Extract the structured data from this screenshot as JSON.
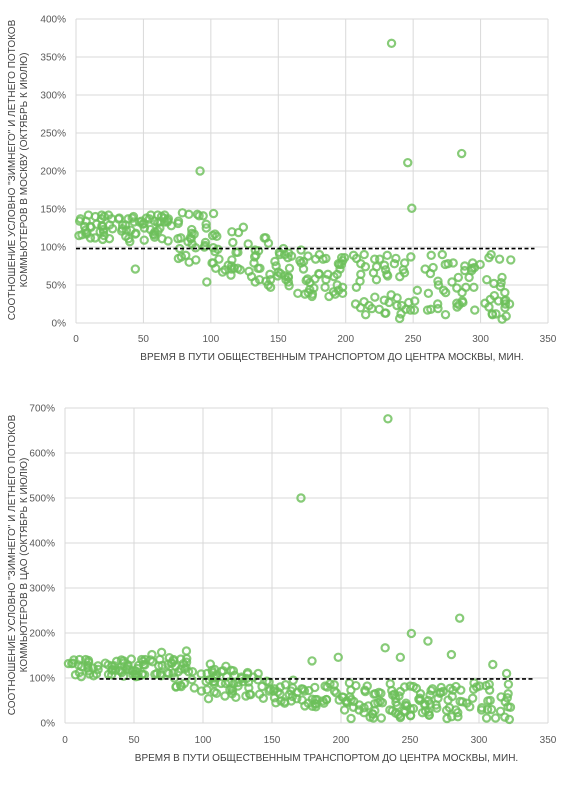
{
  "colors": {
    "marker": "#6cc05a",
    "grid": "#d9d9d9",
    "avg_line": "#000000",
    "text": "#595959"
  },
  "chart_data": [
    {
      "type": "scatter",
      "xlabel": "ВРЕМЯ В ПУТИ  ОБЩЕСТВЕННЫМ ТРАНСПОРТОМ ДО ЦЕНТРА МОСКВЫ, МИН.",
      "ylabel_lines": [
        "СООТНОШЕНИЕ УСЛОВНО \"ЗИМНЕГО\" И ЛЕТНЕГО ПОТОКОВ",
        "КОММЬЮТЕРОВ В МОСКВУ (ОКТЯБРЬ К ИЮЛЮ)"
      ],
      "xlim": [
        0,
        350
      ],
      "ylim": [
        0,
        400
      ],
      "x_ticks": [
        "0",
        "50",
        "100",
        "150",
        "200",
        "250",
        "300",
        "350"
      ],
      "y_ticks": [
        "0%",
        "50%",
        "100%",
        "150%",
        "200%",
        "250%",
        "300%",
        "350%",
        "400%"
      ],
      "grid": true,
      "reference_line": {
        "x": [
          0,
          340
        ],
        "y": 98,
        "style": "dashed"
      },
      "outliers": [
        [
          234,
          368
        ],
        [
          286,
          223
        ],
        [
          246,
          211
        ],
        [
          92,
          200
        ],
        [
          249,
          151
        ],
        [
          102,
          144
        ],
        [
          90,
          143
        ],
        [
          44,
          71
        ],
        [
          97,
          54
        ],
        [
          240,
          6
        ],
        [
          316,
          5
        ],
        [
          319,
          9
        ],
        [
          274,
          11
        ]
      ],
      "point_count": 320,
      "seed": 7
    },
    {
      "type": "scatter",
      "xlabel": "ВРЕМЯ В ПУТИ  ОБЩЕСТВЕННЫМ ТРАНСПОРТОМ ДО ЦЕНТРА МОСКВЫ, МИН.",
      "ylabel_lines": [
        "СООТНОШЕНИЕ УСЛОВНО \"ЗИМНЕГО\" И ЛЕТНЕГО ПОТОКОВ",
        "КОММЬЮТЕРОВ В ЦАО (ОКТЯБРЬ К ИЮЛЮ)"
      ],
      "xlim": [
        0,
        350
      ],
      "ylim": [
        0,
        700
      ],
      "x_ticks": [
        "0",
        "50",
        "100",
        "150",
        "200",
        "250",
        "300",
        "350"
      ],
      "y_ticks": [
        "0%",
        "100%",
        "200%",
        "300%",
        "400%",
        "500%",
        "600%",
        "700%"
      ],
      "grid": true,
      "reference_line": {
        "x": [
          25,
          340
        ],
        "y": 98,
        "style": "dashed"
      },
      "outliers": [
        [
          234,
          676
        ],
        [
          171,
          500
        ],
        [
          286,
          233
        ],
        [
          251,
          199
        ],
        [
          263,
          182
        ],
        [
          232,
          167
        ],
        [
          243,
          146
        ],
        [
          280,
          152
        ],
        [
          310,
          130
        ],
        [
          320,
          110
        ],
        [
          198,
          146
        ],
        [
          179,
          138
        ],
        [
          88,
          160
        ],
        [
          70,
          157
        ],
        [
          63,
          152
        ],
        [
          104,
          54
        ],
        [
          322,
          8
        ]
      ],
      "point_count": 330,
      "seed": 19
    }
  ]
}
